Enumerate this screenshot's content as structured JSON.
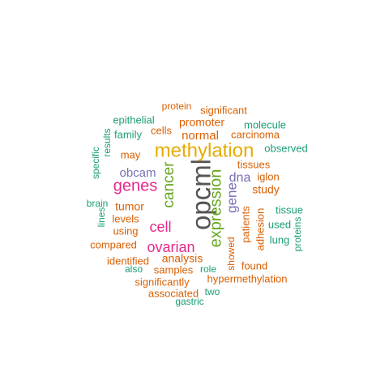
{
  "palette": {
    "green": "#1b9e77",
    "orange": "#d95f02",
    "purple": "#7570b3",
    "magenta": "#e7298a",
    "olive": "#66a61e",
    "gold": "#e6ab02",
    "gray": "#555555"
  },
  "words": [
    {
      "text": "opcml",
      "color": "gray"
    },
    {
      "text": "methylation",
      "color": "gold"
    },
    {
      "text": "expression",
      "color": "olive"
    },
    {
      "text": "genes",
      "color": "magenta"
    },
    {
      "text": "cancer",
      "color": "olive"
    },
    {
      "text": "ovarian",
      "color": "magenta"
    },
    {
      "text": "cell",
      "color": "magenta"
    },
    {
      "text": "gene",
      "color": "purple"
    },
    {
      "text": "dna",
      "color": "purple"
    },
    {
      "text": "obcam",
      "color": "purple"
    },
    {
      "text": "normal",
      "color": "orange"
    },
    {
      "text": "promoter",
      "color": "orange"
    },
    {
      "text": "analysis",
      "color": "orange"
    },
    {
      "text": "tumor",
      "color": "orange"
    },
    {
      "text": "study",
      "color": "orange"
    },
    {
      "text": "tissues",
      "color": "orange"
    },
    {
      "text": "iglon",
      "color": "orange"
    },
    {
      "text": "patients",
      "color": "orange"
    },
    {
      "text": "adhesion",
      "color": "orange"
    },
    {
      "text": "levels",
      "color": "orange"
    },
    {
      "text": "carcinoma",
      "color": "orange"
    },
    {
      "text": "significant",
      "color": "orange"
    },
    {
      "text": "protein",
      "color": "orange"
    },
    {
      "text": "cells",
      "color": "orange"
    },
    {
      "text": "may",
      "color": "orange"
    },
    {
      "text": "using",
      "color": "orange"
    },
    {
      "text": "compared",
      "color": "orange"
    },
    {
      "text": "identified",
      "color": "orange"
    },
    {
      "text": "samples",
      "color": "orange"
    },
    {
      "text": "showed",
      "color": "orange"
    },
    {
      "text": "found",
      "color": "orange"
    },
    {
      "text": "hypermethylation",
      "color": "orange"
    },
    {
      "text": "significantly",
      "color": "orange"
    },
    {
      "text": "associated",
      "color": "orange"
    },
    {
      "text": "epithelial",
      "color": "green"
    },
    {
      "text": "family",
      "color": "green"
    },
    {
      "text": "results",
      "color": "green"
    },
    {
      "text": "specific",
      "color": "green"
    },
    {
      "text": "brain",
      "color": "green"
    },
    {
      "text": "lines",
      "color": "green"
    },
    {
      "text": "molecule",
      "color": "green"
    },
    {
      "text": "observed",
      "color": "green"
    },
    {
      "text": "tissue",
      "color": "green"
    },
    {
      "text": "used",
      "color": "green"
    },
    {
      "text": "lung",
      "color": "green"
    },
    {
      "text": "proteins",
      "color": "green"
    },
    {
      "text": "also",
      "color": "green"
    },
    {
      "text": "role",
      "color": "green"
    },
    {
      "text": "two",
      "color": "green"
    },
    {
      "text": "gastric",
      "color": "green"
    }
  ]
}
